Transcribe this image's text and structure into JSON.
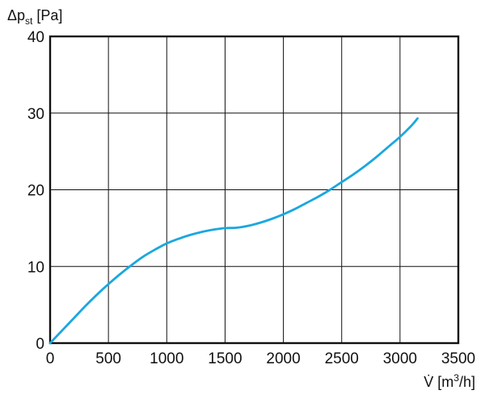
{
  "chart_data": {
    "type": "line",
    "title": "",
    "ylabel": {
      "main": "Δp",
      "sub": "st",
      "unit": " [Pa]"
    },
    "xlabel": {
      "main": "V̇ [m",
      "sup": "3",
      "rest": "/h]"
    },
    "xlim": [
      0,
      3500
    ],
    "ylim": [
      0,
      40
    ],
    "xticks": [
      0,
      500,
      1000,
      1500,
      2000,
      2500,
      3000,
      3500
    ],
    "yticks": [
      0,
      10,
      20,
      30,
      40
    ],
    "x_tick_labels": [
      "0",
      "500",
      "1000",
      "1500",
      "2000",
      "2500",
      "3000",
      "3500"
    ],
    "y_tick_labels": [
      "0",
      "10",
      "20",
      "30",
      "40"
    ],
    "grid": true,
    "line_color": "#1aa7e0",
    "series": [
      {
        "x": [
          0,
          100,
          200,
          300,
          400,
          500,
          600,
          700,
          800,
          900,
          1000,
          1100,
          1200,
          1300,
          1400,
          1500,
          1600,
          1700,
          1800,
          1900,
          2000,
          2100,
          2200,
          2300,
          2400,
          2500,
          2600,
          2700,
          2800,
          2900,
          3000,
          3100,
          3150
        ],
        "y": [
          0,
          1.6,
          3.2,
          4.8,
          6.3,
          7.7,
          9.0,
          10.2,
          11.3,
          12.2,
          13.0,
          13.6,
          14.1,
          14.5,
          14.8,
          15.0,
          15.05,
          15.3,
          15.7,
          16.2,
          16.8,
          17.5,
          18.3,
          19.1,
          20.0,
          21.0,
          22.0,
          23.1,
          24.3,
          25.6,
          26.9,
          28.4,
          29.3
        ]
      }
    ]
  }
}
